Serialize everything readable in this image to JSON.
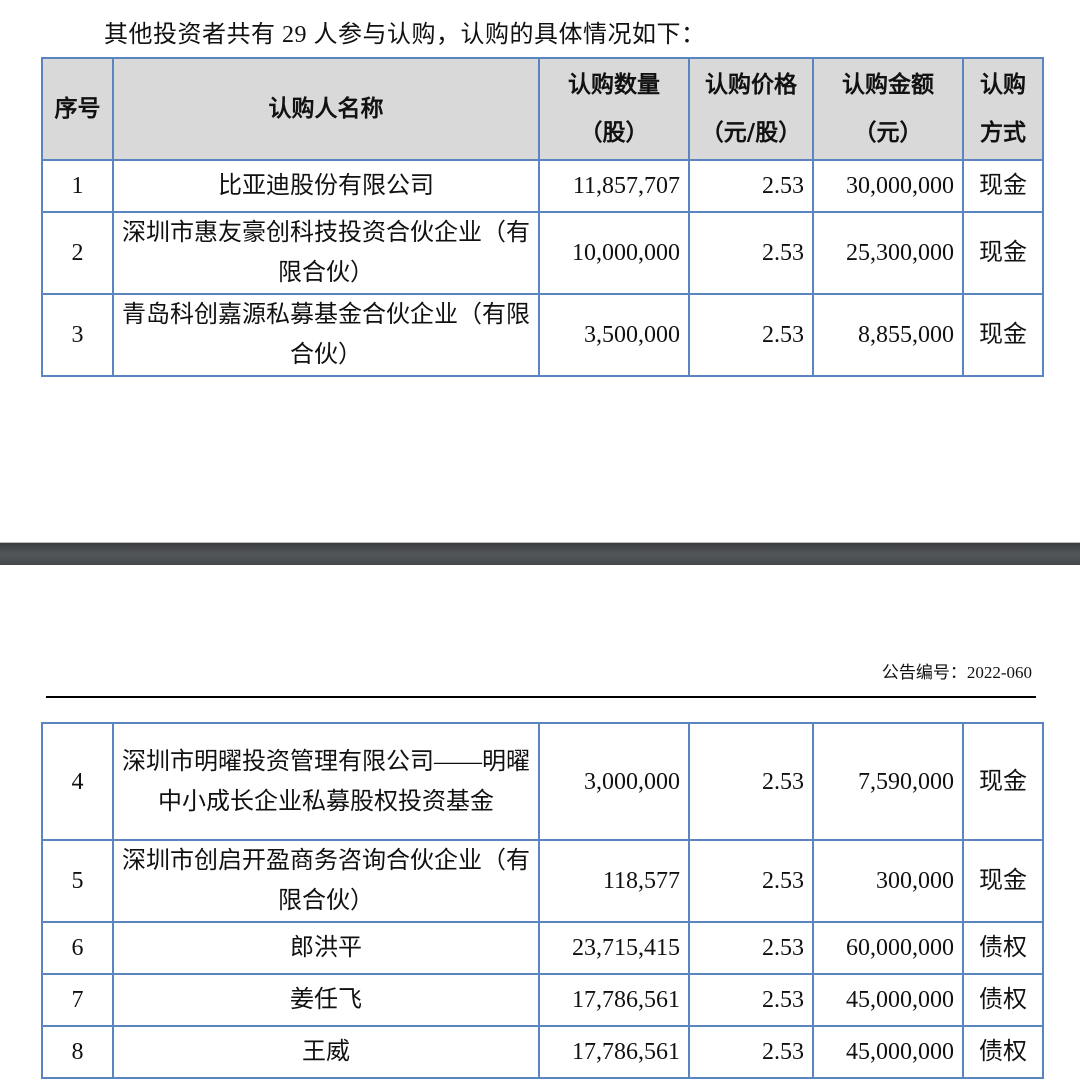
{
  "intro": "其他投资者共有 29 人参与认购，认购的具体情况如下：",
  "headers": {
    "no": "序号",
    "name": "认购人名称",
    "qty": [
      "认购数量",
      "（股）"
    ],
    "price": [
      "认购价格",
      "（元/股）"
    ],
    "amount": [
      "认购金额",
      "（元）"
    ],
    "method": [
      "认购",
      "方式"
    ]
  },
  "rows_page1": [
    {
      "no": "1",
      "name": "比亚迪股份有限公司",
      "qty": "11,857,707",
      "price": "2.53",
      "amount": "30,000,000",
      "method": "现金"
    },
    {
      "no": "2",
      "name": "深圳市惠友豪创科技投资合伙企业（有限合伙）",
      "qty": "10,000,000",
      "price": "2.53",
      "amount": "25,300,000",
      "method": "现金"
    },
    {
      "no": "3",
      "name": "青岛科创嘉源私募基金合伙企业（有限合伙）",
      "qty": "3,500,000",
      "price": "2.53",
      "amount": "8,855,000",
      "method": "现金"
    }
  ],
  "doc_number": "公告编号：2022-060",
  "rows_page2": [
    {
      "no": "4",
      "name": "深圳市明曜投资管理有限公司——明曜中小成长企业私募股权投资基金",
      "qty": "3,000,000",
      "price": "2.53",
      "amount": "7,590,000",
      "method": "现金"
    },
    {
      "no": "5",
      "name": "深圳市创启开盈商务咨询合伙企业（有限合伙）",
      "qty": "118,577",
      "price": "2.53",
      "amount": "300,000",
      "method": "现金"
    },
    {
      "no": "6",
      "name": "郎洪平",
      "qty": "23,715,415",
      "price": "2.53",
      "amount": "60,000,000",
      "method": "债权"
    },
    {
      "no": "7",
      "name": "姜任飞",
      "qty": "17,786,561",
      "price": "2.53",
      "amount": "45,000,000",
      "method": "债权"
    },
    {
      "no": "8",
      "name": "王威",
      "qty": "17,786,561",
      "price": "2.53",
      "amount": "45,000,000",
      "method": "债权"
    }
  ]
}
